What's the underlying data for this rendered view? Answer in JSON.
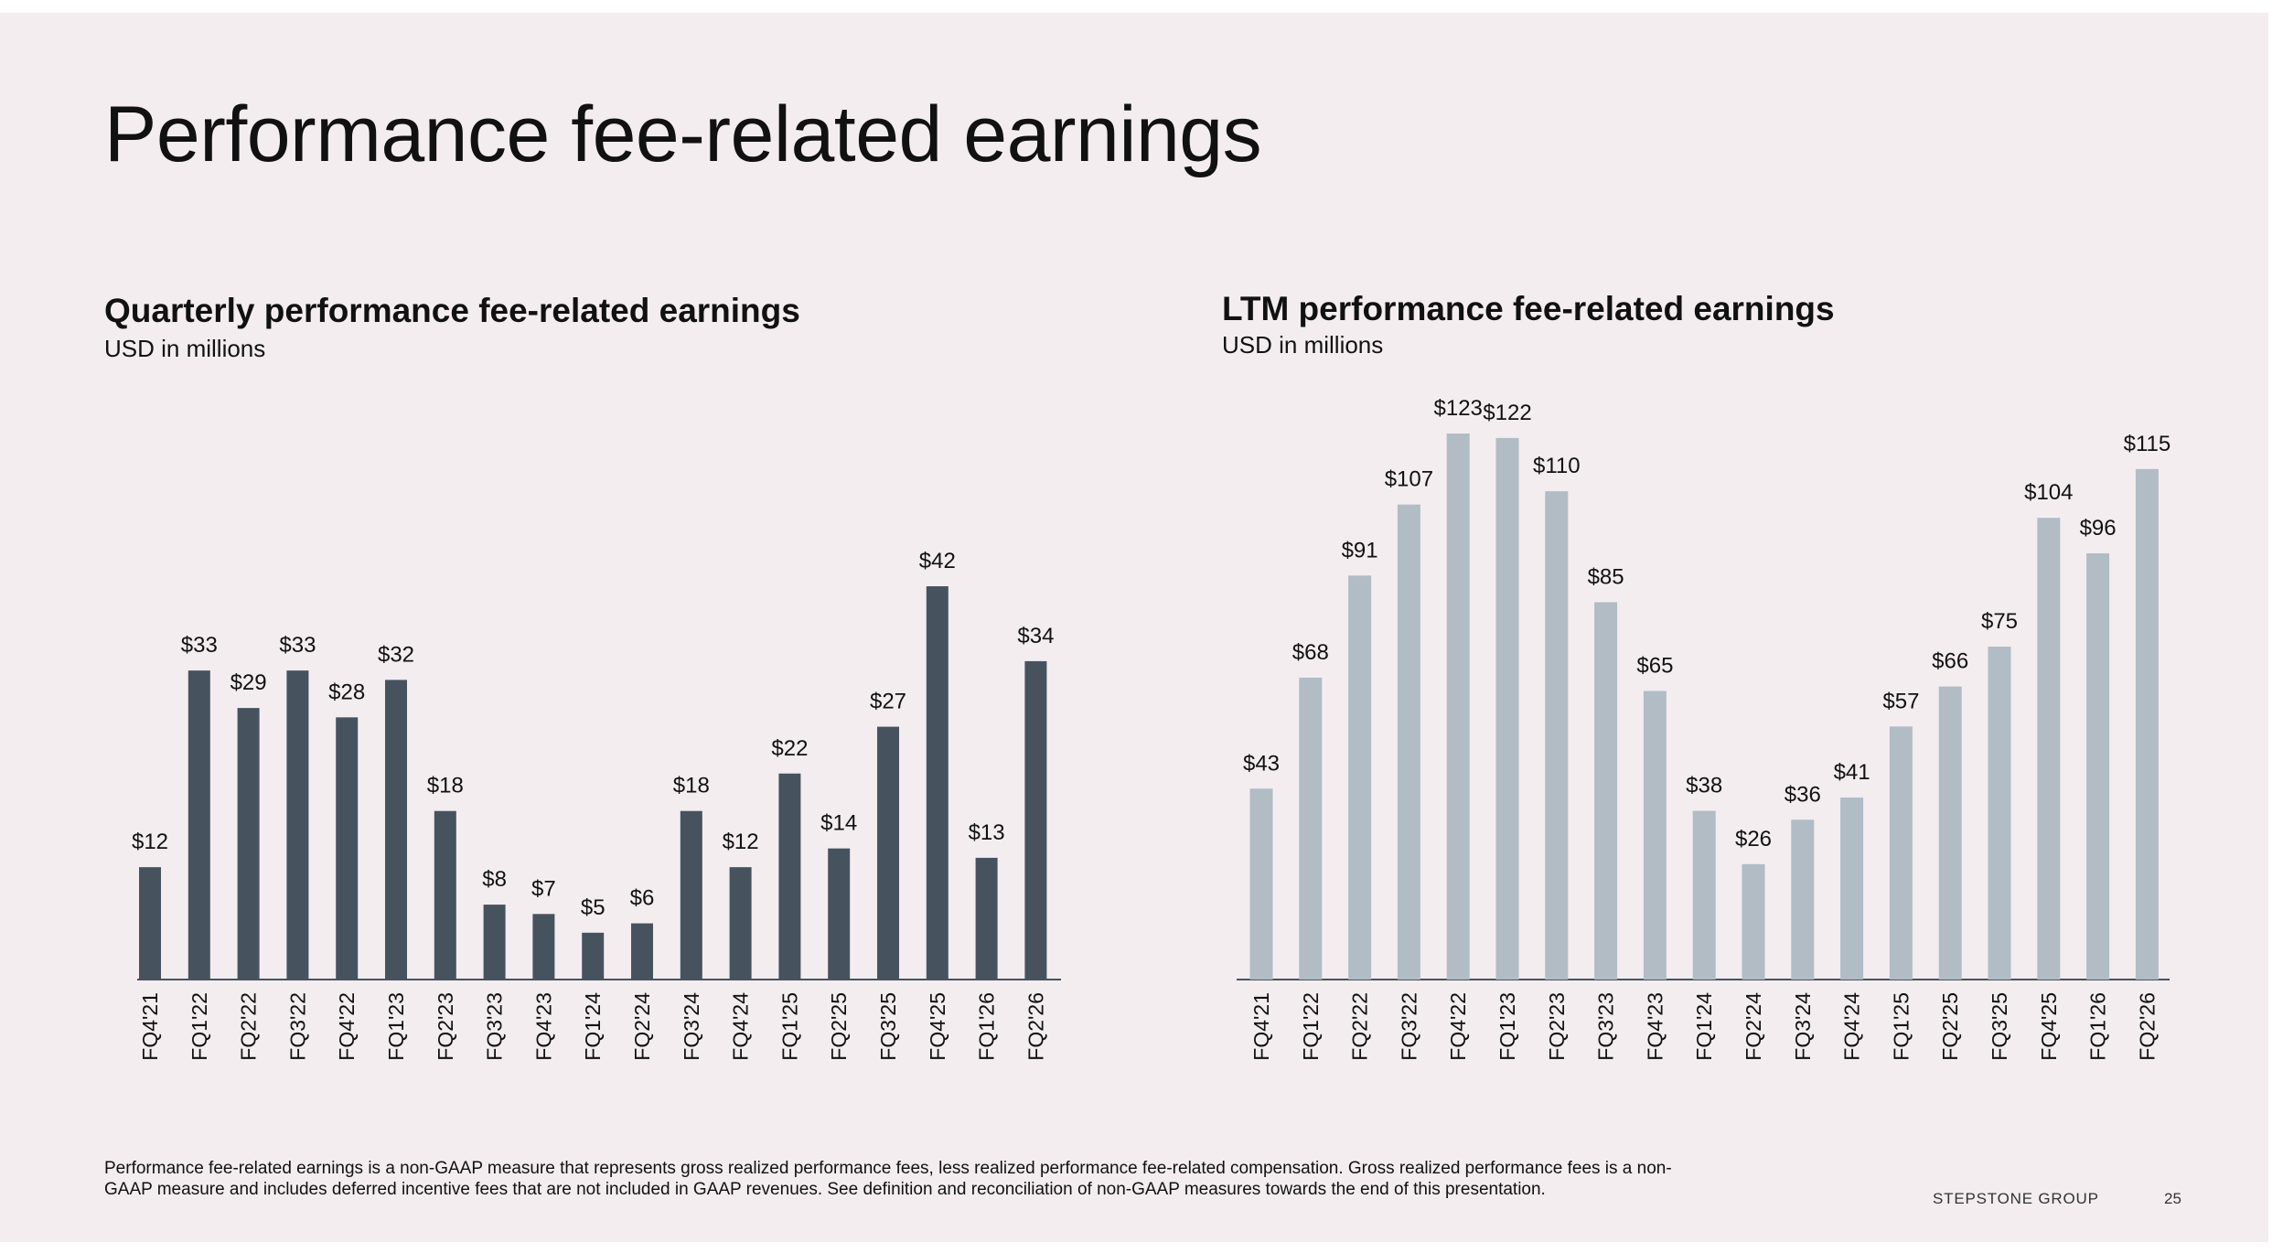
{
  "page": {
    "title": "Performance fee-related earnings",
    "footnote": "Performance fee-related earnings is a non-GAAP measure that represents gross realized performance fees, less realized performance fee-related compensation. Gross realized performance fees is a non-GAAP measure and includes deferred incentive fees that are not included in GAAP revenues. See definition and reconciliation of non-GAAP measures towards the end of this presentation.",
    "brand": "STEPSTONE GROUP",
    "page_number": "25"
  },
  "colors": {
    "background": "#f3edf0",
    "quarterly_bar": "#46535f",
    "ltm_bar": "#b1bcc5",
    "axis": "#46535f"
  },
  "chart_data": [
    {
      "type": "bar",
      "title": "Quarterly performance fee-related earnings",
      "subtitle": "USD in millions",
      "categories": [
        "FQ4'21",
        "FQ1'22",
        "FQ2'22",
        "FQ3'22",
        "FQ4'22",
        "FQ1'23",
        "FQ2'23",
        "FQ3'23",
        "FQ4'23",
        "FQ1'24",
        "FQ2'24",
        "FQ3'24",
        "FQ4'24",
        "FQ1'25",
        "FQ2'25",
        "FQ3'25",
        "FQ4'25",
        "FQ1'26",
        "FQ2'26"
      ],
      "values": [
        12,
        33,
        29,
        33,
        28,
        32,
        18,
        8,
        7,
        5,
        6,
        18,
        12,
        22,
        14,
        27,
        42,
        13,
        34
      ],
      "labels": [
        "$12",
        "$33",
        "$29",
        "$33",
        "$28",
        "$32",
        "$18",
        "$8",
        "$7",
        "$5",
        "$6",
        "$18",
        "$12",
        "$22",
        "$14",
        "$27",
        "$42",
        "$13",
        "$34"
      ],
      "ylim": [
        0,
        42
      ],
      "grid": false,
      "xlabel": "",
      "ylabel": ""
    },
    {
      "type": "bar",
      "title": "LTM performance fee-related earnings",
      "subtitle": "USD in millions",
      "categories": [
        "FQ4'21",
        "FQ1'22",
        "FQ2'22",
        "FQ3'22",
        "FQ4'22",
        "FQ1'23",
        "FQ2'23",
        "FQ3'23",
        "FQ4'23",
        "FQ1'24",
        "FQ2'24",
        "FQ3'24",
        "FQ4'24",
        "FQ1'25",
        "FQ2'25",
        "FQ3'25",
        "FQ4'25",
        "FQ1'26",
        "FQ2'26"
      ],
      "values": [
        43,
        68,
        91,
        107,
        123,
        122,
        110,
        85,
        65,
        38,
        26,
        36,
        41,
        57,
        66,
        75,
        104,
        96,
        115
      ],
      "labels": [
        "$43",
        "$68",
        "$91",
        "$107",
        "$123",
        "$122",
        "$110",
        "$85",
        "$65",
        "$38",
        "$26",
        "$36",
        "$41",
        "$57",
        "$66",
        "$75",
        "$104",
        "$96",
        "$115"
      ],
      "ylim": [
        0,
        123
      ],
      "grid": false,
      "xlabel": "",
      "ylabel": ""
    }
  ]
}
